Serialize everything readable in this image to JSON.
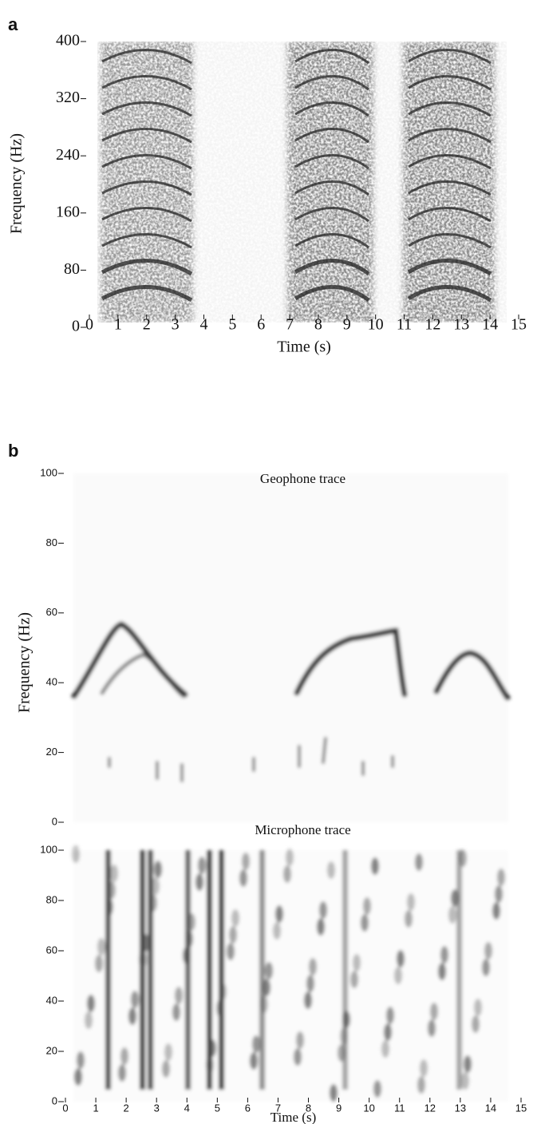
{
  "chart_data": [
    {
      "type": "spectrogram",
      "panel_label": "a",
      "xlabel": "Time (s)",
      "ylabel": "Frequency (Hz)",
      "xlim": [
        0,
        15
      ],
      "xticks": [
        0,
        1,
        2,
        3,
        4,
        5,
        6,
        7,
        8,
        9,
        10,
        11,
        12,
        13,
        14,
        15
      ],
      "ylim": [
        0,
        400
      ],
      "yticks": [
        0,
        80,
        160,
        240,
        320,
        400
      ]
    },
    {
      "type": "spectrogram",
      "panel_label": "b",
      "title": "Geophone trace",
      "ylabel": "Frequency (Hz)",
      "xlim": [
        0,
        15
      ],
      "ylim": [
        0,
        100
      ],
      "yticks": [
        0,
        20,
        40,
        60,
        80,
        100
      ]
    },
    {
      "type": "spectrogram",
      "title": "Microphone trace",
      "xlabel": "Time (s)",
      "xlim": [
        0,
        15
      ],
      "xticks": [
        0,
        1,
        2,
        3,
        4,
        5,
        6,
        7,
        8,
        9,
        10,
        11,
        12,
        13,
        14,
        15
      ],
      "ylim": [
        0,
        100
      ],
      "yticks": [
        0,
        20,
        40,
        60,
        80,
        100
      ]
    }
  ]
}
